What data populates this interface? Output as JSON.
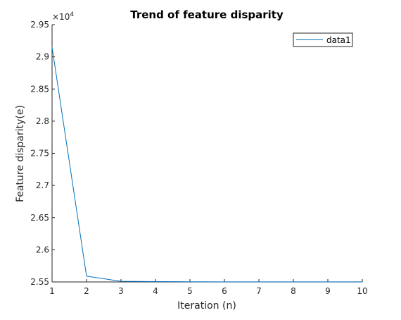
{
  "chart_data": {
    "type": "line",
    "title": "Trend of feature disparity",
    "xlabel": "Iteration (n)",
    "ylabel": "Feature disparity(e)",
    "exponent_label": "×10",
    "exponent_power": "4",
    "x": [
      1,
      2,
      3,
      4,
      5,
      6,
      7,
      8,
      9,
      10
    ],
    "series": [
      {
        "name": "data1",
        "color": "#0072BD",
        "values": [
          29150,
          25590,
          25510,
          25505,
          25503,
          25502,
          25502,
          25502,
          25502,
          25502
        ]
      }
    ],
    "xlim": [
      1,
      10
    ],
    "ylim": [
      25500,
      29500
    ],
    "x_ticks": [
      1,
      2,
      3,
      4,
      5,
      6,
      7,
      8,
      9,
      10
    ],
    "x_tick_labels": [
      "1",
      "2",
      "3",
      "4",
      "5",
      "6",
      "7",
      "8",
      "9",
      "10"
    ],
    "y_ticks": [
      25500,
      26000,
      26500,
      27000,
      27500,
      28000,
      28500,
      29000,
      29500
    ],
    "y_tick_labels": [
      "2.55",
      "2.6",
      "2.65",
      "2.7",
      "2.75",
      "2.8",
      "2.85",
      "2.9",
      "2.95"
    ],
    "legend_position": "top-right",
    "grid": false,
    "axis_color": "#262626"
  }
}
